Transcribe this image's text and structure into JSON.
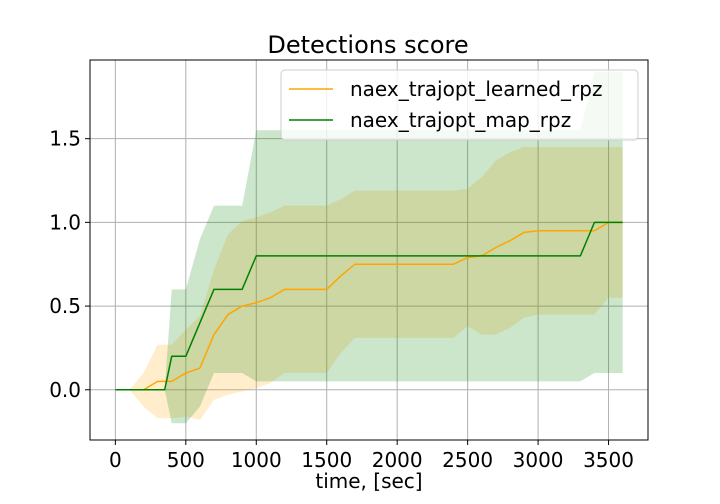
{
  "chart_data": {
    "type": "line",
    "title": "Detections score",
    "xlabel": "time, [sec]",
    "ylabel": "",
    "xlim": [
      -180,
      3780
    ],
    "ylim": [
      -0.3,
      1.97
    ],
    "xticks": [
      0,
      500,
      1000,
      1500,
      2000,
      2500,
      3000,
      3500
    ],
    "xtick_labels": [
      "0",
      "500",
      "1000",
      "1500",
      "2000",
      "2500",
      "3000",
      "3500"
    ],
    "yticks": [
      0.0,
      0.5,
      1.0,
      1.5
    ],
    "ytick_labels": [
      "0.0",
      "0.5",
      "1.0",
      "1.5"
    ],
    "grid": true,
    "legend_position": "top-right",
    "series": [
      {
        "name": "naex_trajopt_learned_rpz",
        "color": "#ffa500",
        "band_alpha": 0.2,
        "points": [
          [
            0,
            0
          ],
          [
            100,
            0
          ],
          [
            200,
            0
          ],
          [
            300,
            0.05
          ],
          [
            400,
            0.05
          ],
          [
            500,
            0.1
          ],
          [
            600,
            0.13
          ],
          [
            700,
            0.33
          ],
          [
            800,
            0.45
          ],
          [
            900,
            0.5
          ],
          [
            1000,
            0.52
          ],
          [
            1100,
            0.55
          ],
          [
            1200,
            0.6
          ],
          [
            1300,
            0.6
          ],
          [
            1400,
            0.6
          ],
          [
            1500,
            0.6
          ],
          [
            1600,
            0.68
          ],
          [
            1700,
            0.75
          ],
          [
            1800,
            0.75
          ],
          [
            1900,
            0.75
          ],
          [
            2000,
            0.75
          ],
          [
            2100,
            0.75
          ],
          [
            2200,
            0.75
          ],
          [
            2300,
            0.75
          ],
          [
            2400,
            0.75
          ],
          [
            2500,
            0.79
          ],
          [
            2600,
            0.8
          ],
          [
            2700,
            0.85
          ],
          [
            2800,
            0.89
          ],
          [
            2900,
            0.94
          ],
          [
            3000,
            0.95
          ],
          [
            3100,
            0.95
          ],
          [
            3200,
            0.95
          ],
          [
            3300,
            0.95
          ],
          [
            3400,
            0.95
          ],
          [
            3500,
            1.0
          ],
          [
            3600,
            1.0
          ]
        ],
        "upper": [
          [
            0,
            0
          ],
          [
            100,
            0
          ],
          [
            200,
            0.1
          ],
          [
            300,
            0.27
          ],
          [
            400,
            0.27
          ],
          [
            500,
            0.36
          ],
          [
            600,
            0.44
          ],
          [
            700,
            0.72
          ],
          [
            800,
            0.93
          ],
          [
            900,
            1.01
          ],
          [
            1000,
            1.03
          ],
          [
            1100,
            1.06
          ],
          [
            1200,
            1.1
          ],
          [
            1300,
            1.1
          ],
          [
            1400,
            1.1
          ],
          [
            1500,
            1.1
          ],
          [
            1600,
            1.14
          ],
          [
            1700,
            1.19
          ],
          [
            1800,
            1.19
          ],
          [
            1900,
            1.19
          ],
          [
            2000,
            1.19
          ],
          [
            2100,
            1.19
          ],
          [
            2200,
            1.19
          ],
          [
            2300,
            1.19
          ],
          [
            2400,
            1.19
          ],
          [
            2500,
            1.2
          ],
          [
            2600,
            1.27
          ],
          [
            2700,
            1.37
          ],
          [
            2800,
            1.42
          ],
          [
            2900,
            1.45
          ],
          [
            3000,
            1.45
          ],
          [
            3100,
            1.45
          ],
          [
            3200,
            1.45
          ],
          [
            3300,
            1.45
          ],
          [
            3400,
            1.45
          ],
          [
            3500,
            1.45
          ],
          [
            3600,
            1.45
          ]
        ],
        "lower": [
          [
            0,
            0
          ],
          [
            100,
            0
          ],
          [
            200,
            -0.1
          ],
          [
            300,
            -0.17
          ],
          [
            400,
            -0.17
          ],
          [
            500,
            -0.16
          ],
          [
            600,
            -0.18
          ],
          [
            700,
            -0.06
          ],
          [
            800,
            -0.03
          ],
          [
            900,
            -0.01
          ],
          [
            1000,
            0.01
          ],
          [
            1100,
            0.04
          ],
          [
            1200,
            0.1
          ],
          [
            1300,
            0.1
          ],
          [
            1400,
            0.1
          ],
          [
            1500,
            0.1
          ],
          [
            1600,
            0.22
          ],
          [
            1700,
            0.31
          ],
          [
            1800,
            0.31
          ],
          [
            1900,
            0.31
          ],
          [
            2000,
            0.31
          ],
          [
            2100,
            0.31
          ],
          [
            2200,
            0.31
          ],
          [
            2300,
            0.31
          ],
          [
            2400,
            0.31
          ],
          [
            2500,
            0.38
          ],
          [
            2600,
            0.33
          ],
          [
            2700,
            0.33
          ],
          [
            2800,
            0.37
          ],
          [
            2900,
            0.43
          ],
          [
            3000,
            0.45
          ],
          [
            3100,
            0.45
          ],
          [
            3200,
            0.45
          ],
          [
            3300,
            0.45
          ],
          [
            3400,
            0.45
          ],
          [
            3500,
            0.55
          ],
          [
            3600,
            0.55
          ]
        ]
      },
      {
        "name": "naex_trajopt_map_rpz",
        "color": "#008000",
        "band_alpha": 0.2,
        "points": [
          [
            0,
            0
          ],
          [
            100,
            0
          ],
          [
            200,
            0
          ],
          [
            300,
            0
          ],
          [
            350,
            0
          ],
          [
            400,
            0.2
          ],
          [
            500,
            0.2
          ],
          [
            600,
            0.4
          ],
          [
            700,
            0.6
          ],
          [
            800,
            0.6
          ],
          [
            900,
            0.6
          ],
          [
            1000,
            0.8
          ],
          [
            1500,
            0.8
          ],
          [
            2000,
            0.8
          ],
          [
            2500,
            0.8
          ],
          [
            3000,
            0.8
          ],
          [
            3300,
            0.8
          ],
          [
            3400,
            1.0
          ],
          [
            3500,
            1.0
          ],
          [
            3600,
            1.0
          ]
        ],
        "upper": [
          [
            0,
            0
          ],
          [
            100,
            0
          ],
          [
            200,
            0
          ],
          [
            300,
            0
          ],
          [
            350,
            0
          ],
          [
            400,
            0.6
          ],
          [
            500,
            0.6
          ],
          [
            600,
            0.9
          ],
          [
            700,
            1.1
          ],
          [
            800,
            1.1
          ],
          [
            900,
            1.1
          ],
          [
            1000,
            1.55
          ],
          [
            1500,
            1.55
          ],
          [
            2000,
            1.55
          ],
          [
            2500,
            1.55
          ],
          [
            3000,
            1.55
          ],
          [
            3300,
            1.55
          ],
          [
            3400,
            1.9
          ],
          [
            3500,
            1.9
          ],
          [
            3600,
            1.9
          ]
        ],
        "lower": [
          [
            0,
            0
          ],
          [
            100,
            0
          ],
          [
            200,
            0
          ],
          [
            300,
            0
          ],
          [
            350,
            0
          ],
          [
            400,
            -0.2
          ],
          [
            500,
            -0.2
          ],
          [
            600,
            -0.1
          ],
          [
            700,
            0.1
          ],
          [
            800,
            0.1
          ],
          [
            900,
            0.1
          ],
          [
            1000,
            0.05
          ],
          [
            1500,
            0.05
          ],
          [
            2000,
            0.05
          ],
          [
            2500,
            0.05
          ],
          [
            3000,
            0.05
          ],
          [
            3300,
            0.05
          ],
          [
            3400,
            0.1
          ],
          [
            3500,
            0.1
          ],
          [
            3600,
            0.1
          ]
        ]
      }
    ]
  }
}
